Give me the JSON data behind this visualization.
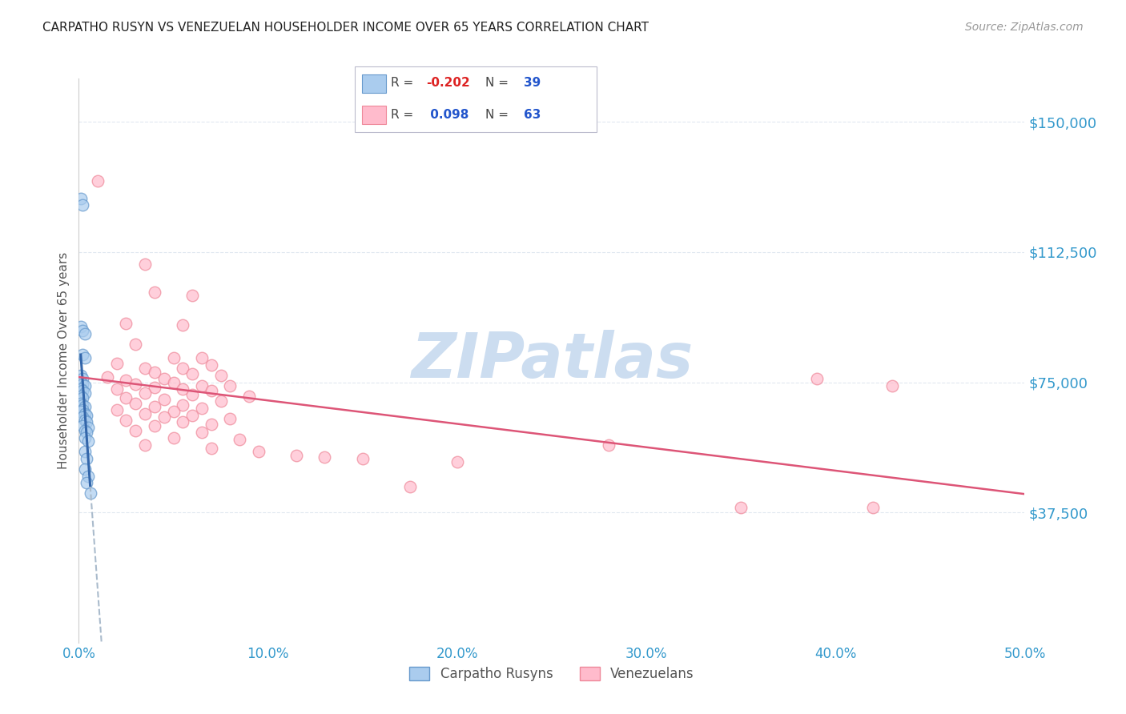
{
  "title": "CARPATHO RUSYN VS VENEZUELAN HOUSEHOLDER INCOME OVER 65 YEARS CORRELATION CHART",
  "source": "Source: ZipAtlas.com",
  "ylabel": "Householder Income Over 65 years",
  "xlabel_ticks": [
    "0.0%",
    "10.0%",
    "20.0%",
    "30.0%",
    "40.0%",
    "50.0%"
  ],
  "ytick_labels": [
    "$37,500",
    "$75,000",
    "$112,500",
    "$150,000"
  ],
  "ytick_values": [
    37500,
    75000,
    112500,
    150000
  ],
  "ylim": [
    0,
    162500
  ],
  "xlim": [
    0.0,
    0.5
  ],
  "watermark": "ZIPatlas",
  "blue_points": [
    [
      0.001,
      128000
    ],
    [
      0.002,
      126000
    ],
    [
      0.001,
      91000
    ],
    [
      0.002,
      90000
    ],
    [
      0.003,
      89000
    ],
    [
      0.002,
      83000
    ],
    [
      0.003,
      82000
    ],
    [
      0.001,
      77000
    ],
    [
      0.002,
      76000
    ],
    [
      0.001,
      75000
    ],
    [
      0.002,
      74500
    ],
    [
      0.003,
      74000
    ],
    [
      0.001,
      73000
    ],
    [
      0.002,
      72500
    ],
    [
      0.003,
      72000
    ],
    [
      0.001,
      71000
    ],
    [
      0.002,
      70500
    ],
    [
      0.001,
      69000
    ],
    [
      0.002,
      68500
    ],
    [
      0.003,
      68000
    ],
    [
      0.002,
      67000
    ],
    [
      0.001,
      66500
    ],
    [
      0.003,
      66000
    ],
    [
      0.004,
      65500
    ],
    [
      0.002,
      65000
    ],
    [
      0.003,
      64000
    ],
    [
      0.004,
      63500
    ],
    [
      0.002,
      62500
    ],
    [
      0.005,
      62000
    ],
    [
      0.003,
      61000
    ],
    [
      0.004,
      60500
    ],
    [
      0.003,
      59000
    ],
    [
      0.005,
      58000
    ],
    [
      0.003,
      55000
    ],
    [
      0.004,
      53000
    ],
    [
      0.003,
      50000
    ],
    [
      0.005,
      48000
    ],
    [
      0.004,
      46000
    ],
    [
      0.006,
      43000
    ]
  ],
  "pink_points": [
    [
      0.01,
      133000
    ],
    [
      0.035,
      109000
    ],
    [
      0.04,
      101000
    ],
    [
      0.06,
      100000
    ],
    [
      0.025,
      92000
    ],
    [
      0.055,
      91500
    ],
    [
      0.03,
      86000
    ],
    [
      0.05,
      82000
    ],
    [
      0.065,
      82000
    ],
    [
      0.02,
      80500
    ],
    [
      0.07,
      80000
    ],
    [
      0.035,
      79000
    ],
    [
      0.055,
      79000
    ],
    [
      0.04,
      78000
    ],
    [
      0.06,
      77500
    ],
    [
      0.075,
      77000
    ],
    [
      0.015,
      76500
    ],
    [
      0.045,
      76000
    ],
    [
      0.025,
      75500
    ],
    [
      0.05,
      75000
    ],
    [
      0.03,
      74500
    ],
    [
      0.065,
      74000
    ],
    [
      0.08,
      74000
    ],
    [
      0.04,
      73500
    ],
    [
      0.02,
      73000
    ],
    [
      0.055,
      73000
    ],
    [
      0.07,
      72500
    ],
    [
      0.035,
      72000
    ],
    [
      0.06,
      71500
    ],
    [
      0.09,
      71000
    ],
    [
      0.025,
      70500
    ],
    [
      0.045,
      70000
    ],
    [
      0.075,
      69500
    ],
    [
      0.03,
      69000
    ],
    [
      0.055,
      68500
    ],
    [
      0.04,
      68000
    ],
    [
      0.065,
      67500
    ],
    [
      0.02,
      67000
    ],
    [
      0.05,
      66500
    ],
    [
      0.035,
      66000
    ],
    [
      0.06,
      65500
    ],
    [
      0.045,
      65000
    ],
    [
      0.08,
      64500
    ],
    [
      0.025,
      64000
    ],
    [
      0.055,
      63500
    ],
    [
      0.07,
      63000
    ],
    [
      0.04,
      62500
    ],
    [
      0.03,
      61000
    ],
    [
      0.065,
      60500
    ],
    [
      0.05,
      59000
    ],
    [
      0.085,
      58500
    ],
    [
      0.035,
      57000
    ],
    [
      0.07,
      56000
    ],
    [
      0.095,
      55000
    ],
    [
      0.115,
      54000
    ],
    [
      0.13,
      53500
    ],
    [
      0.15,
      53000
    ],
    [
      0.2,
      52000
    ],
    [
      0.28,
      57000
    ],
    [
      0.175,
      45000
    ],
    [
      0.35,
      39000
    ],
    [
      0.39,
      76000
    ],
    [
      0.42,
      39000
    ],
    [
      0.43,
      74000
    ]
  ],
  "blue_line_color": "#3366aa",
  "pink_line_color": "#dd5577",
  "blue_dash_color": "#aabbcc",
  "grid_color": "#e0e8f0",
  "title_color": "#222222",
  "axis_color": "#3399cc",
  "watermark_color": "#ccddf0"
}
